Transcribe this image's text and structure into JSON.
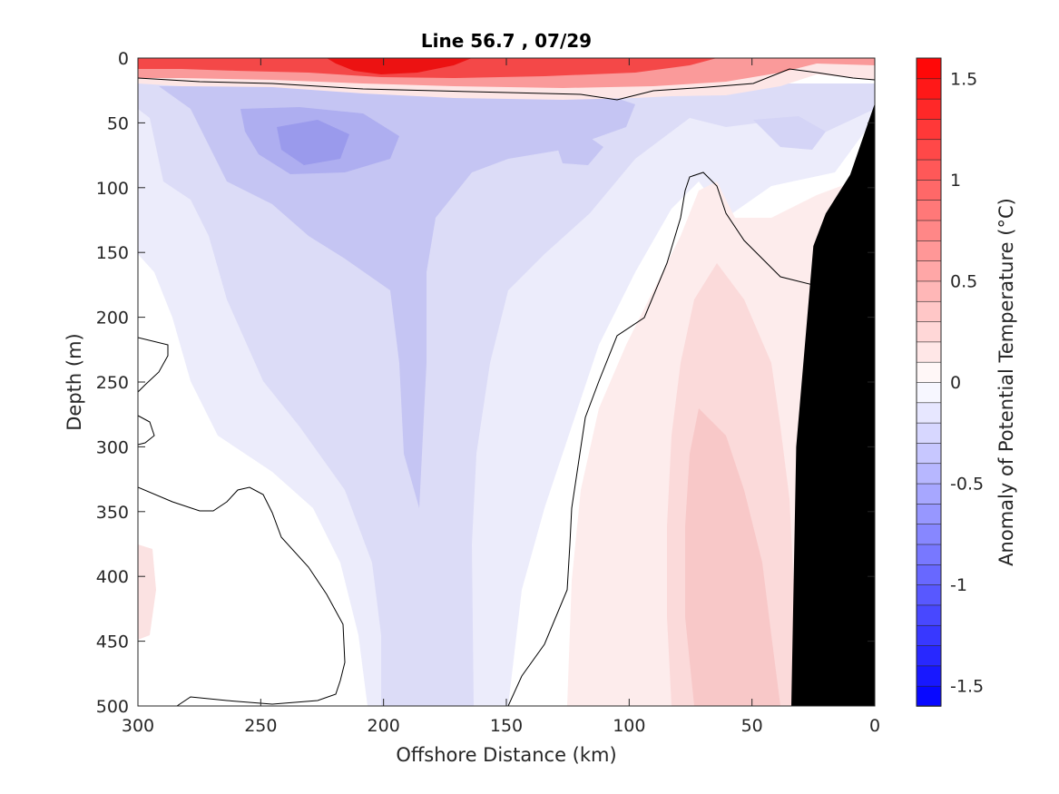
{
  "chart_data": {
    "type": "contour",
    "title": "Line 56.7 , 07/29",
    "xlabel": "Offshore Distance (km)",
    "ylabel": "Depth (m)",
    "colorbar_label": "Anomaly of Potential Temperature (°C)",
    "x_reversed": true,
    "y_reversed": true,
    "xlim": [
      0,
      300
    ],
    "ylim": [
      0,
      500
    ],
    "xticks": [
      300,
      250,
      200,
      150,
      100,
      50,
      0
    ],
    "yticks": [
      0,
      50,
      100,
      150,
      200,
      250,
      300,
      350,
      400,
      450,
      500
    ],
    "colorbar_range": [
      -1.6,
      1.6
    ],
    "colorbar_ticks": [
      -1.5,
      -1,
      -0.5,
      0,
      0.5,
      1,
      1.5
    ],
    "colorbar_tick_labels": [
      "-1.5",
      "-1",
      "-0.5",
      "0",
      "0.5",
      "1",
      "1.5"
    ],
    "colors": {
      "warm_max": "#ff0000",
      "cold_max": "#0000ff",
      "neutral": "#ffffff",
      "bathymetry": "#000000"
    },
    "features": [
      {
        "name": "surface warm layer",
        "anomaly": 1.5,
        "depth_range": [
          0,
          25
        ],
        "x_range": [
          0,
          300
        ]
      },
      {
        "name": "subsurface cold core",
        "anomaly": -0.6,
        "center": [
          225,
          60
        ]
      },
      {
        "name": "nearshore warm tongue",
        "anomaly": 0.4,
        "center": [
          60,
          350
        ]
      },
      {
        "name": "zero contour",
        "anomaly": 0
      }
    ],
    "bathymetry": {
      "x": [
        0,
        10,
        20,
        25,
        32,
        34,
        0
      ],
      "y": [
        35,
        90,
        120,
        145,
        300,
        500,
        500
      ]
    }
  }
}
